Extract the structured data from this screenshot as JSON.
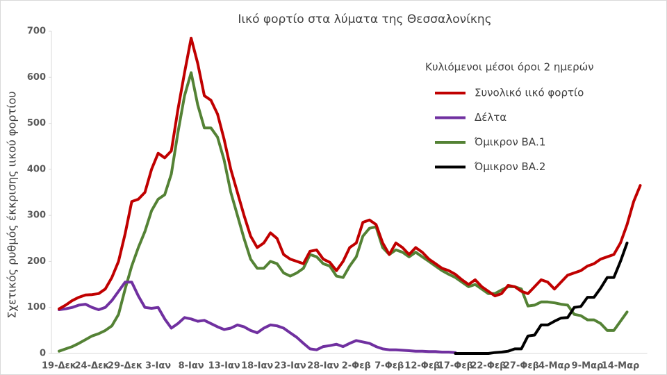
{
  "chart_data": {
    "type": "line",
    "title": "Ιικό φορτίο στα λύματα της Θεσσαλονίκης",
    "y_label": "Σχετικός ρυθμός έκκρισης ιικού φορτίου",
    "legend_title": "Κυλιόμενοι μέσοι όροι 2 ημερών",
    "legend": "upper right",
    "ylim": [
      0,
      700
    ],
    "yticks": [
      0,
      100,
      200,
      300,
      400,
      500,
      600,
      700
    ],
    "categories": [
      "19-Δεκ",
      null,
      null,
      null,
      null,
      "24-Δεκ",
      null,
      null,
      null,
      null,
      "29-Δεκ",
      null,
      null,
      null,
      null,
      "3-Ιαν",
      null,
      null,
      null,
      null,
      "8-Ιαν",
      null,
      null,
      null,
      null,
      "13-Ιαν",
      null,
      null,
      null,
      null,
      "18-Ιαν",
      null,
      null,
      null,
      null,
      "23-Ιαν",
      null,
      null,
      null,
      null,
      "28-Ιαν",
      null,
      null,
      null,
      null,
      "2-Φεβ",
      null,
      null,
      null,
      null,
      "7-Φεβ",
      null,
      null,
      null,
      null,
      "12-Φεβ",
      null,
      null,
      null,
      null,
      "17-Φεβ",
      null,
      null,
      null,
      null,
      "22-Φεβ",
      null,
      null,
      null,
      null,
      "27-Φεβ",
      null,
      null,
      null,
      null,
      "4-Μαρ",
      null,
      null,
      null,
      null,
      "9-Μαρ",
      null,
      null,
      null,
      null,
      "14-Μαρ",
      null,
      null,
      null
    ],
    "series": [
      {
        "name": "Συνολικό ιικό φορτίο",
        "color": "#c00000",
        "values": [
          97,
          105,
          115,
          122,
          127,
          128,
          130,
          140,
          165,
          200,
          260,
          330,
          335,
          350,
          400,
          435,
          425,
          440,
          530,
          610,
          685,
          630,
          560,
          550,
          520,
          465,
          400,
          350,
          300,
          255,
          230,
          240,
          262,
          250,
          215,
          205,
          200,
          195,
          222,
          225,
          205,
          198,
          180,
          200,
          230,
          240,
          285,
          290,
          280,
          240,
          215,
          240,
          230,
          215,
          230,
          220,
          205,
          195,
          185,
          180,
          172,
          160,
          150,
          160,
          145,
          135,
          125,
          130,
          148,
          145,
          135,
          130,
          145,
          160,
          155,
          140,
          155,
          170,
          175,
          180,
          190,
          195,
          205,
          210,
          215,
          240,
          280,
          330,
          365
        ]
      },
      {
        "name": "Δέλτα",
        "color": "#7030a0",
        "values": [
          95,
          97,
          100,
          105,
          107,
          100,
          95,
          100,
          115,
          135,
          155,
          155,
          125,
          100,
          98,
          100,
          75,
          55,
          65,
          78,
          75,
          70,
          72,
          65,
          58,
          52,
          55,
          62,
          58,
          50,
          45,
          55,
          62,
          60,
          55,
          45,
          35,
          22,
          10,
          8,
          15,
          17,
          20,
          15,
          22,
          28,
          25,
          22,
          15,
          10,
          8,
          8,
          7,
          6,
          5,
          5,
          4,
          4,
          3,
          3,
          2,
          null,
          null,
          null,
          null,
          null,
          null,
          null,
          null,
          null,
          null,
          null,
          null,
          null,
          null,
          null,
          null,
          null,
          null,
          null,
          null,
          null,
          null,
          null,
          null,
          null,
          null,
          null,
          null
        ]
      },
      {
        "name": "Όμικρον ΒΑ.1",
        "color": "#548235",
        "values": [
          5,
          10,
          15,
          22,
          30,
          38,
          43,
          50,
          60,
          85,
          140,
          190,
          230,
          265,
          310,
          335,
          345,
          390,
          480,
          560,
          610,
          540,
          490,
          490,
          470,
          420,
          350,
          300,
          250,
          205,
          185,
          185,
          200,
          195,
          175,
          168,
          175,
          185,
          215,
          210,
          195,
          190,
          168,
          165,
          190,
          210,
          255,
          272,
          275,
          230,
          215,
          225,
          220,
          210,
          220,
          210,
          200,
          190,
          180,
          172,
          165,
          155,
          145,
          150,
          140,
          130,
          130,
          138,
          145,
          145,
          140,
          103,
          105,
          112,
          112,
          110,
          107,
          105,
          85,
          82,
          73,
          73,
          65,
          50,
          50,
          70,
          90,
          null,
          null
        ]
      },
      {
        "name": "Όμικρον ΒΑ.2",
        "color": "#000000",
        "values": [
          null,
          null,
          null,
          null,
          null,
          null,
          null,
          null,
          null,
          null,
          null,
          null,
          null,
          null,
          null,
          null,
          null,
          null,
          null,
          null,
          null,
          null,
          null,
          null,
          null,
          null,
          null,
          null,
          null,
          null,
          null,
          null,
          null,
          null,
          null,
          null,
          null,
          null,
          null,
          null,
          null,
          null,
          null,
          null,
          null,
          null,
          null,
          null,
          null,
          null,
          null,
          null,
          null,
          null,
          null,
          null,
          null,
          null,
          null,
          null,
          0,
          0,
          0,
          0,
          0,
          0,
          2,
          3,
          5,
          10,
          10,
          38,
          40,
          62,
          62,
          70,
          77,
          78,
          100,
          102,
          122,
          122,
          142,
          165,
          165,
          200,
          240,
          null,
          null
        ]
      }
    ]
  }
}
